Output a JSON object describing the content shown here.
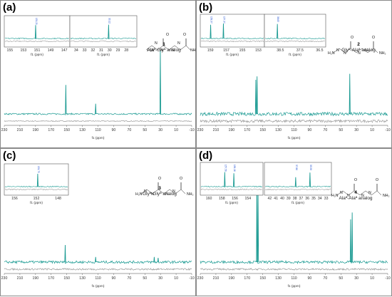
{
  "colors": {
    "top_trace": "#1a9a92",
    "bottom_trace": "#9a9a9a",
    "peak_label": "#1f4fd1",
    "frame": "#6e6e6e"
  },
  "chart_data": [
    {
      "type": "line",
      "panel_label": "(a)",
      "compound_number": "1",
      "compound_name": "Alaª-Glyª analog",
      "xlabel": "f1 (ppm)",
      "xlim": [
        230,
        -10
      ],
      "x_reversed": true,
      "x_ticks": [
        "230",
        "210",
        "190",
        "170",
        "150",
        "130",
        "110",
        "90",
        "70",
        "50",
        "30",
        "10",
        "-10"
      ],
      "series": [
        {
          "role": "top",
          "peaks": [
            {
              "x": 151.2,
              "h": 0.34
            },
            {
              "x": 113.0,
              "h": 0.12
            },
            {
              "x": 30.2,
              "h": 0.74
            }
          ],
          "noise": 0.018
        },
        {
          "role": "bottom",
          "peaks": [],
          "noise": 0.01
        }
      ],
      "insets": [
        {
          "xlim": [
            155.5,
            146.5
          ],
          "x_ticks": [
            "155",
            "153",
            "151",
            "149",
            "147"
          ],
          "xlabel": "f1 (ppm)",
          "peak_labels": [
            "151.21"
          ],
          "peaks": [
            {
              "x": 151.21,
              "h": 0.85
            }
          ]
        },
        {
          "xlim": [
            34.5,
            27
          ],
          "x_ticks": [
            "34",
            "33",
            "32",
            "31",
            "30",
            "29",
            "28"
          ],
          "xlabel": "f1 (ppm)",
          "peak_labels": [
            "30.12"
          ],
          "peaks": [
            {
              "x": 30.12,
              "h": 0.88
            }
          ]
        }
      ]
    },
    {
      "type": "line",
      "panel_label": "(b)",
      "compound_number": "2",
      "compound_name": "Glyª-Alaª analog",
      "xlabel": "f1 (ppm)",
      "xlim": [
        230,
        -10
      ],
      "x_reversed": true,
      "x_ticks": [
        "230",
        "210",
        "190",
        "170",
        "150",
        "130",
        "110",
        "90",
        "70",
        "50",
        "30",
        "10",
        "-10"
      ],
      "series": [
        {
          "role": "top",
          "peaks": [
            {
              "x": 158.9,
              "h": 0.4
            },
            {
              "x": 157.3,
              "h": 0.44
            },
            {
              "x": 38.6,
              "h": 0.47
            }
          ],
          "noise": 0.04
        },
        {
          "role": "bottom",
          "peaks": [],
          "noise": 0.03
        }
      ],
      "insets": [
        {
          "xlim": [
            160,
            152.5
          ],
          "x_ticks": [
            "159",
            "157",
            "155",
            "153"
          ],
          "xlabel": "f1 (ppm)",
          "peak_labels": [
            "158.97",
            "157.37"
          ],
          "peaks": [
            {
              "x": 158.97,
              "h": 0.8
            },
            {
              "x": 157.37,
              "h": 0.88
            }
          ]
        },
        {
          "xlim": [
            39.2,
            36.3
          ],
          "x_ticks": [
            "38.5",
            "37.5",
            "36.5"
          ],
          "xlabel": "f1 (ppm)",
          "peak_labels": [
            "38.65"
          ],
          "peaks": [
            {
              "x": 38.65,
              "h": 0.85
            }
          ]
        }
      ]
    },
    {
      "type": "line",
      "panel_label": "(c)",
      "compound_number": "3",
      "compound_name": "Glyª-Glyª analog",
      "xlabel": "f1 (ppm)",
      "xlim": [
        230,
        -10
      ],
      "x_reversed": true,
      "x_ticks": [
        "230",
        "210",
        "190",
        "170",
        "150",
        "130",
        "110",
        "90",
        "70",
        "50",
        "30",
        "10",
        "-10"
      ],
      "series": [
        {
          "role": "top",
          "peaks": [
            {
              "x": 152.0,
              "h": 0.2
            },
            {
              "x": 113.0,
              "h": 0.06
            },
            {
              "x": 38.0,
              "h": 0.06
            },
            {
              "x": 33.0,
              "h": 0.05
            }
          ],
          "noise": 0.03
        },
        {
          "role": "bottom",
          "peaks": [],
          "noise": 0.02
        }
      ],
      "insets": [
        {
          "xlim": [
            157.5,
            146.5
          ],
          "x_ticks": [
            "156",
            "152",
            "148"
          ],
          "xlabel": "f1 (ppm)",
          "peak_labels": [
            "151.75"
          ],
          "peaks": [
            {
              "x": 151.75,
              "h": 0.82
            }
          ]
        }
      ]
    },
    {
      "type": "line",
      "panel_label": "(d)",
      "compound_number": "4",
      "compound_name": "Alaª-Alaª analog",
      "xlabel": "f1 (ppm)",
      "xlim": [
        230,
        -10
      ],
      "x_reversed": true,
      "x_ticks": [
        "230",
        "210",
        "190",
        "170",
        "150",
        "130",
        "110",
        "90",
        "70",
        "50",
        "30",
        "10",
        "-10"
      ],
      "series": [
        {
          "role": "top",
          "peaks": [
            {
              "x": 157.5,
              "h": 0.98
            },
            {
              "x": 156.0,
              "h": 0.82
            },
            {
              "x": 37.5,
              "h": 0.5
            },
            {
              "x": 35.5,
              "h": 0.58
            }
          ],
          "noise": 0.03
        },
        {
          "role": "bottom",
          "peaks": [],
          "noise": 0.02
        }
      ],
      "insets": [
        {
          "xlim": [
            161,
            152
          ],
          "x_ticks": [
            "160",
            "158",
            "156",
            "154"
          ],
          "xlabel": "f1 (ppm)",
          "peak_labels": [
            "157.56",
            "156.16"
          ],
          "peaks": [
            {
              "x": 157.56,
              "h": 0.85
            },
            {
              "x": 156.16,
              "h": 0.78
            }
          ]
        },
        {
          "xlim": [
            42.5,
            32.5
          ],
          "x_ticks": [
            "42",
            "41",
            "40",
            "39",
            "38",
            "37",
            "36",
            "35",
            "34",
            "33"
          ],
          "xlabel": "f1 (ppm)",
          "peak_labels": [
            "37.86",
            "35.58"
          ],
          "peaks": [
            {
              "x": 37.86,
              "h": 0.55
            },
            {
              "x": 35.58,
              "h": 0.82
            }
          ]
        }
      ]
    }
  ]
}
